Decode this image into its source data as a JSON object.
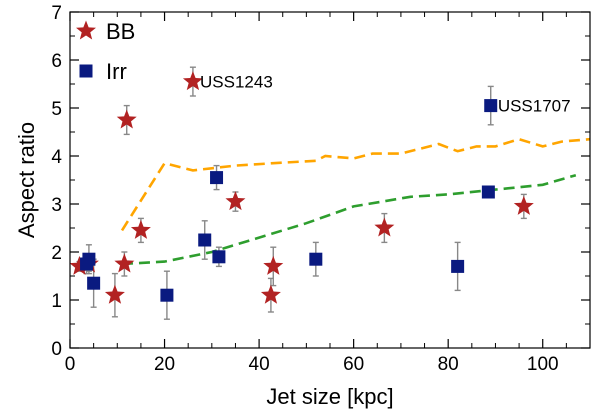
{
  "chart_data": {
    "type": "scatter",
    "xlabel": "Jet size [kpc]",
    "ylabel": "Aspect ratio",
    "xlim": [
      0,
      110
    ],
    "ylim": [
      0,
      7
    ],
    "xticks": [
      0,
      20,
      40,
      60,
      80,
      100
    ],
    "yticks": [
      0,
      1,
      2,
      3,
      4,
      5,
      6,
      7
    ],
    "grid": false,
    "legend": "top-left",
    "colors": {
      "BB": "#b22222",
      "Irr": "#0a1a80",
      "orange_curve": "#ffa500",
      "green_curve": "#2e9e2e",
      "errorbar": "#888888"
    },
    "series": [
      {
        "name": "BB",
        "marker": "star",
        "points": [
          {
            "x": 2,
            "y": 1.7,
            "err": 0.1
          },
          {
            "x": 4,
            "y": 1.75,
            "err": 0.15
          },
          {
            "x": 9.5,
            "y": 1.1,
            "err": 0.45
          },
          {
            "x": 11.5,
            "y": 1.75,
            "err": 0.25
          },
          {
            "x": 12,
            "y": 4.75,
            "err": 0.3
          },
          {
            "x": 15,
            "y": 2.45,
            "err": 0.25
          },
          {
            "x": 26,
            "y": 5.55,
            "err": 0.3
          },
          {
            "x": 35,
            "y": 3.05,
            "err": 0.2
          },
          {
            "x": 42.5,
            "y": 1.1,
            "err": 0.35
          },
          {
            "x": 43,
            "y": 1.7,
            "err": 0.4
          },
          {
            "x": 66.5,
            "y": 2.5,
            "err": 0.3
          },
          {
            "x": 96,
            "y": 2.95,
            "err": 0.25
          }
        ]
      },
      {
        "name": "Irr",
        "marker": "square",
        "points": [
          {
            "x": 3.5,
            "y": 1.75,
            "err": 0.2
          },
          {
            "x": 4,
            "y": 1.85,
            "err": 0.3
          },
          {
            "x": 5,
            "y": 1.35,
            "err": 0.5
          },
          {
            "x": 20.5,
            "y": 1.1,
            "err": 0.5
          },
          {
            "x": 28.5,
            "y": 2.25,
            "err": 0.4
          },
          {
            "x": 31,
            "y": 3.55,
            "err": 0.25
          },
          {
            "x": 31.5,
            "y": 1.9,
            "err": 0.2
          },
          {
            "x": 52,
            "y": 1.85,
            "err": 0.35
          },
          {
            "x": 82,
            "y": 1.7,
            "err": 0.5
          },
          {
            "x": 88.5,
            "y": 3.25,
            "err": 0.1
          },
          {
            "x": 89,
            "y": 5.05,
            "err": 0.4
          }
        ]
      }
    ],
    "curves": [
      {
        "style": "dashed",
        "color_key": "orange_curve",
        "x": [
          11,
          20,
          26,
          35,
          43,
          52,
          54,
          60,
          64,
          70,
          74,
          78,
          82,
          86,
          90,
          95,
          100,
          104,
          110
        ],
        "y": [
          2.45,
          3.85,
          3.7,
          3.8,
          3.85,
          3.9,
          4.0,
          3.95,
          4.05,
          4.05,
          4.15,
          4.25,
          4.1,
          4.2,
          4.2,
          4.35,
          4.2,
          4.3,
          4.35
        ]
      },
      {
        "style": "dashed",
        "color_key": "green_curve",
        "x": [
          11,
          20,
          30,
          40,
          50,
          60,
          66,
          72,
          80,
          90,
          100,
          107
        ],
        "y": [
          1.75,
          1.8,
          2.0,
          2.3,
          2.6,
          2.95,
          3.05,
          3.15,
          3.2,
          3.3,
          3.4,
          3.6
        ]
      }
    ],
    "annotations": [
      {
        "text": "USS1243",
        "x": 27.5,
        "y": 5.55
      },
      {
        "text": "USS1707",
        "x": 90.5,
        "y": 5.05
      }
    ]
  }
}
